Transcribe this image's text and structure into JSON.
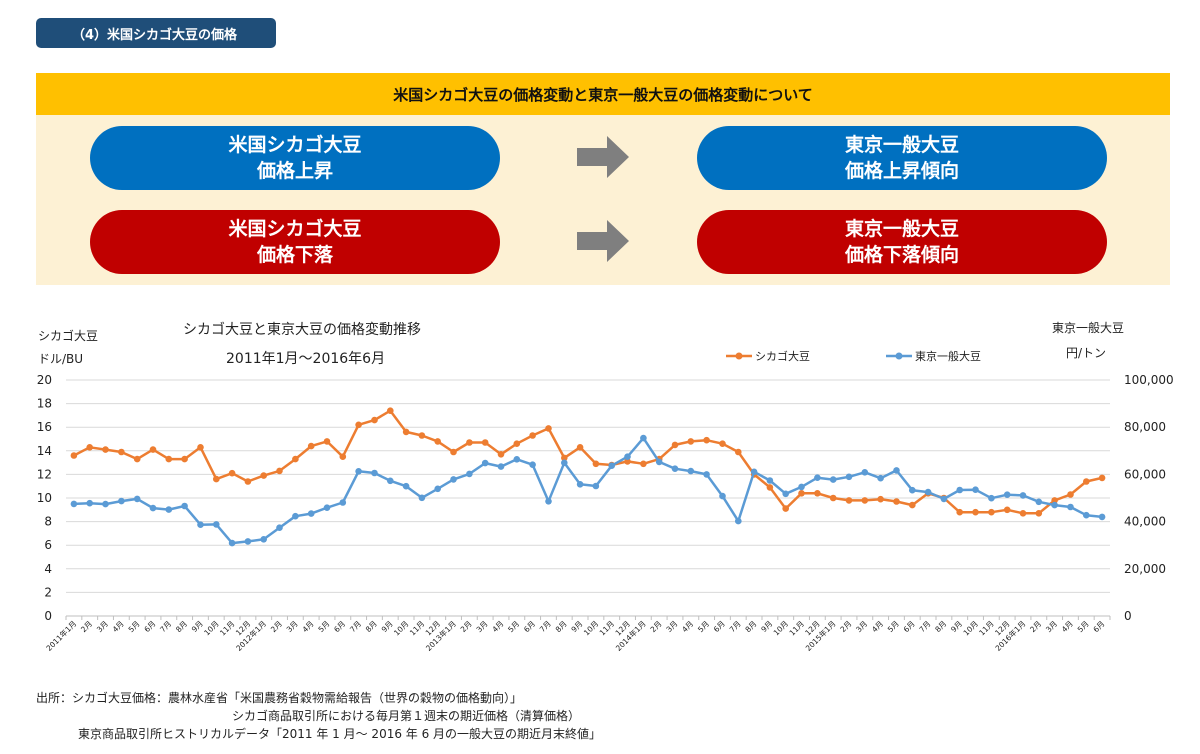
{
  "section_tab": "（4）米国シカゴ大豆の価格",
  "banner_title": "米国シカゴ大豆の価格変動と東京一般大豆の価格変動について",
  "boxes": [
    {
      "line1": "米国シカゴ大豆",
      "line2": "価格上昇",
      "color": "#0070c0"
    },
    {
      "line1": "東京一般大豆",
      "line2": "価格上昇傾向",
      "color": "#0070c0"
    },
    {
      "line1": "米国シカゴ大豆",
      "line2": "価格下落",
      "color": "#c00000"
    },
    {
      "line1": "東京一般大豆",
      "line2": "価格下落傾向",
      "color": "#c00000"
    }
  ],
  "chart_data": {
    "type": "line",
    "title": "シカゴ大豆と東京大豆の価格変動推移",
    "subtitle": "2011年1月～2016年6月",
    "y_left_label_1": "シカゴ大豆",
    "y_left_label_2": "ドル/BU",
    "y_right_label_1": "東京一般大豆",
    "y_right_label_2": "円/トン",
    "y_left": {
      "min": 0,
      "max": 20,
      "ticks": [
        "0",
        "2",
        "4",
        "6",
        "8",
        "10",
        "12",
        "14",
        "16",
        "18",
        "20"
      ]
    },
    "y_right": {
      "min": 0,
      "max": 100000,
      "ticks": [
        "0",
        "20,000",
        "40,000",
        "60,000",
        "80,000",
        "100,000"
      ]
    },
    "grid": true,
    "legend_position": "top-right",
    "categories": [
      "2011年1月",
      "2月",
      "3月",
      "4月",
      "5月",
      "6月",
      "7月",
      "8月",
      "9月",
      "10月",
      "11月",
      "12月",
      "2012年1月",
      "2月",
      "3月",
      "4月",
      "5月",
      "6月",
      "7月",
      "8月",
      "9月",
      "10月",
      "11月",
      "12月",
      "2013年1月",
      "2月",
      "3月",
      "4月",
      "5月",
      "6月",
      "7月",
      "8月",
      "9月",
      "10月",
      "11月",
      "12月",
      "2014年1月",
      "2月",
      "3月",
      "4月",
      "5月",
      "6月",
      "7月",
      "8月",
      "9月",
      "10月",
      "11月",
      "12月",
      "2015年1月",
      "2月",
      "3月",
      "4月",
      "5月",
      "6月",
      "7月",
      "8月",
      "9月",
      "10月",
      "11月",
      "12月",
      "2016年1月",
      "2月",
      "3月",
      "4月",
      "5月",
      "6月"
    ],
    "series": [
      {
        "name": "シカゴ大豆",
        "axis": "left",
        "color": "#ed7d31",
        "values": [
          13.6,
          14.3,
          14.1,
          13.9,
          13.3,
          14.1,
          13.3,
          13.3,
          14.3,
          11.6,
          12.1,
          11.4,
          11.9,
          12.3,
          13.3,
          14.4,
          14.8,
          13.5,
          16.2,
          16.6,
          17.4,
          15.6,
          15.3,
          14.8,
          13.9,
          14.7,
          14.7,
          13.7,
          14.6,
          15.3,
          15.9,
          13.4,
          14.3,
          12.9,
          12.8,
          13.1,
          12.9,
          13.3,
          14.5,
          14.8,
          14.9,
          14.6,
          13.9,
          12.0,
          10.9,
          9.1,
          10.4,
          10.4,
          10.0,
          9.8,
          9.8,
          9.9,
          9.7,
          9.4,
          10.4,
          10.0,
          8.8,
          8.8,
          8.8,
          9.0,
          8.7,
          8.7,
          9.8,
          10.3,
          11.4,
          11.7
        ]
      },
      {
        "name": "東京一般大豆",
        "axis": "right",
        "color": "#5b9bd5",
        "values": [
          47500,
          47800,
          47400,
          48700,
          49600,
          45700,
          45100,
          46600,
          38700,
          38800,
          30900,
          31600,
          32500,
          37400,
          42300,
          43400,
          45900,
          48100,
          61300,
          60600,
          57300,
          55000,
          50100,
          53900,
          57900,
          60200,
          64800,
          63300,
          66400,
          64100,
          48600,
          64900,
          55800,
          55100,
          63700,
          67500,
          75400,
          65300,
          62400,
          61400,
          60000,
          50800,
          40200,
          61100,
          57400,
          51800,
          54700,
          58600,
          57800,
          59000,
          60900,
          58400,
          61700,
          53300,
          52500,
          49600,
          53400,
          53500,
          49900,
          51400,
          51100,
          48400,
          47000,
          46200,
          42700,
          42000
        ]
      }
    ]
  },
  "source": {
    "line1": "出所：シカゴ大豆価格：農林水産省「米国農務省穀物需給報告（世界の穀物の価格動向）」",
    "line2": "シカゴ商品取引所における毎月第１週末の期近価格（清算価格）",
    "line3": "東京商品取引所ヒストリカルデータ「2011 年 1 月～ 2016 年 6 月の一般大豆の期近月末終値」"
  }
}
